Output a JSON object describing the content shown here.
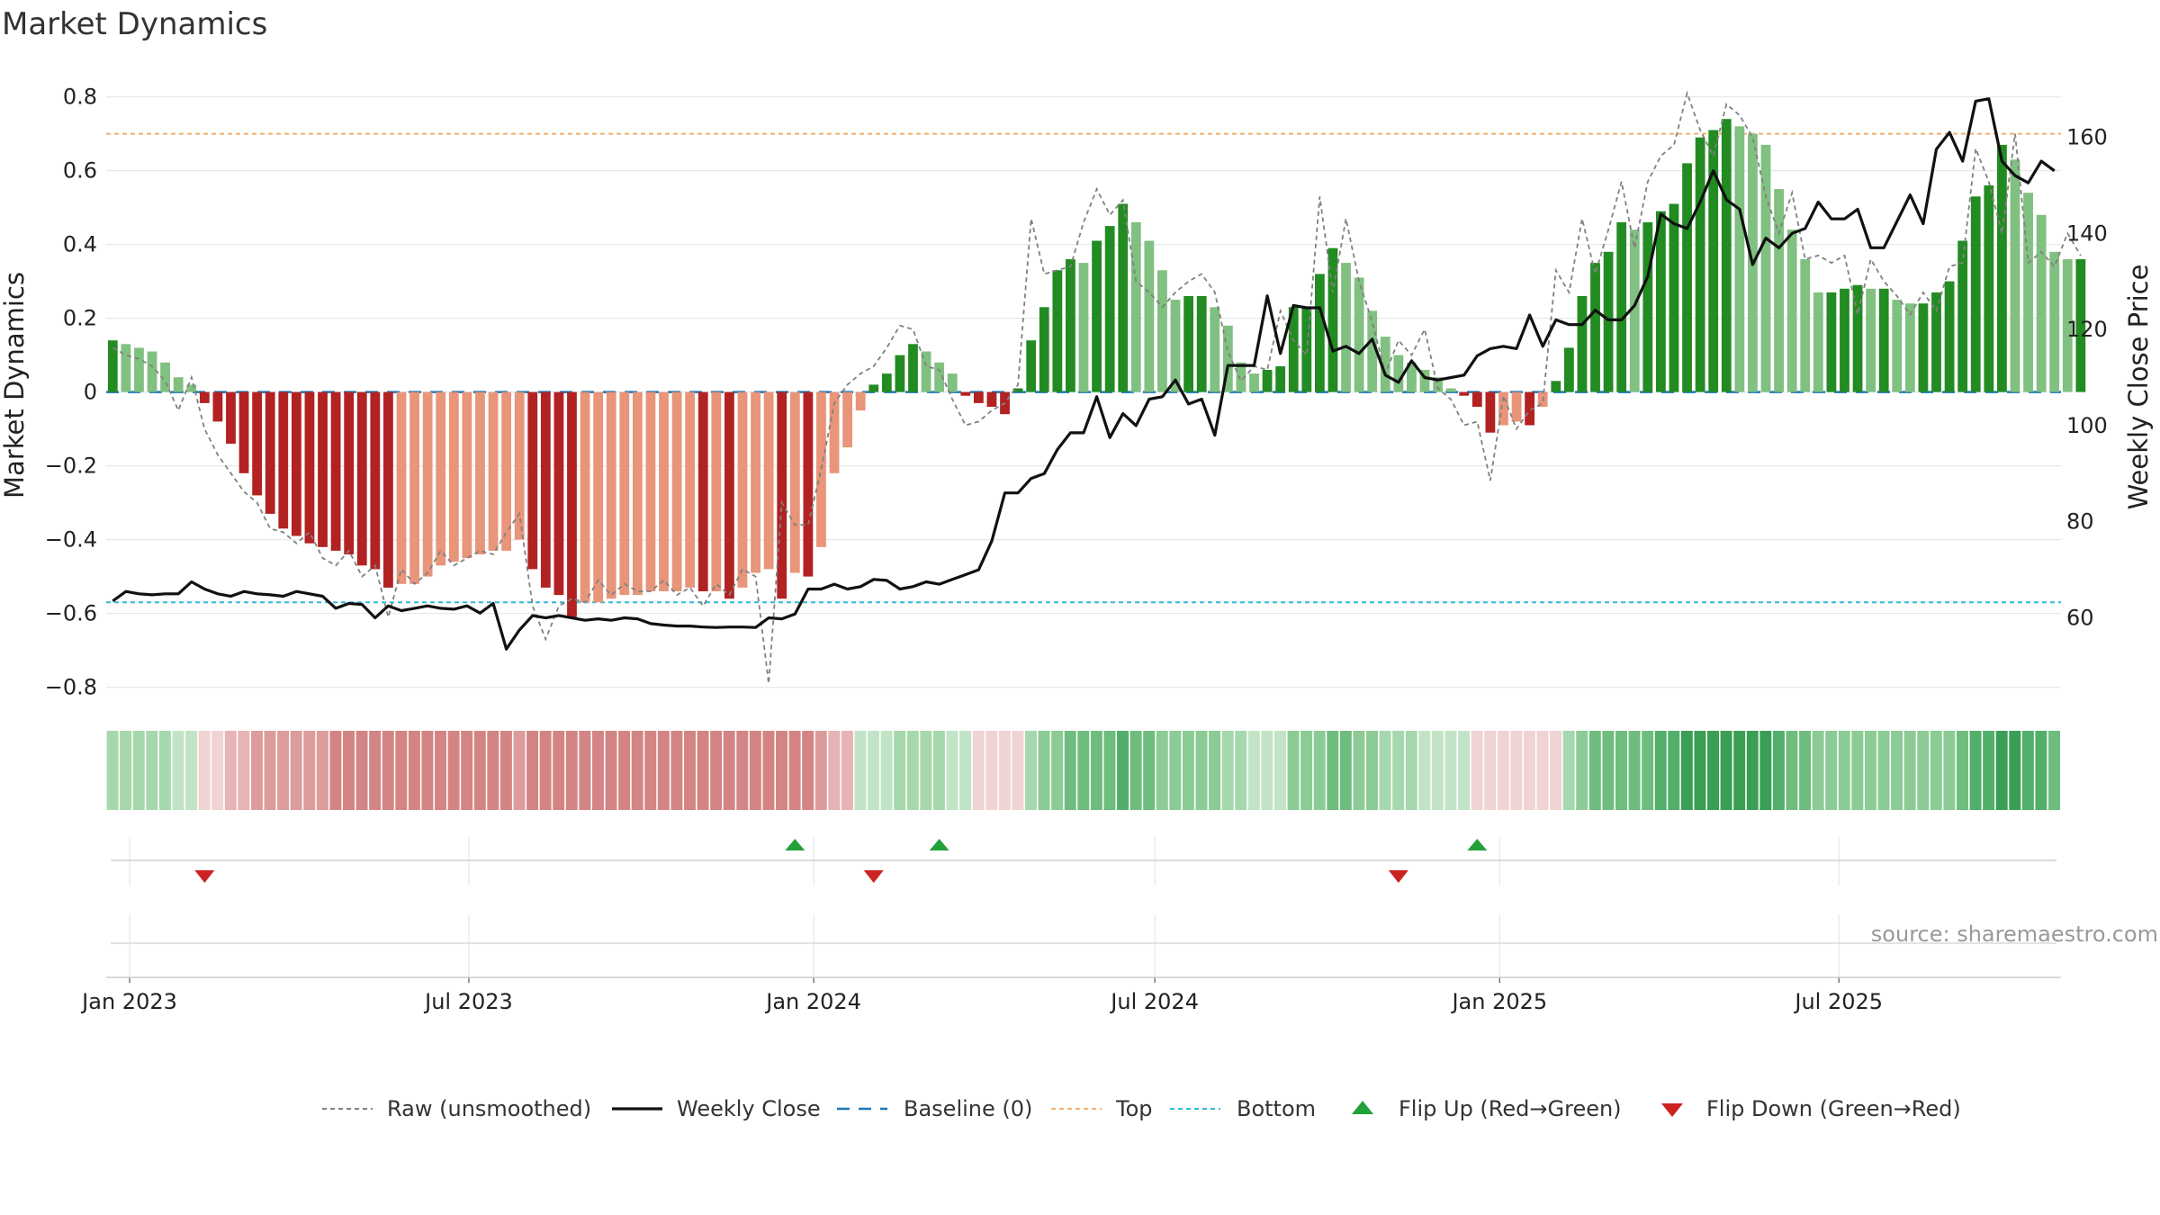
{
  "chart_data": {
    "type": "bar",
    "title": "Market Dynamics",
    "ylabel": "Market Dynamics",
    "y2label": "Weekly Close Price",
    "source": "source: sharemaestro.com",
    "ylim": [
      -0.84,
      0.86
    ],
    "yticks": [
      -0.8,
      -0.6,
      -0.4,
      -0.2,
      0,
      0.2,
      0.4,
      0.6,
      0.8
    ],
    "ytick_labels": [
      "−0.8",
      "−0.6",
      "−0.4",
      "−0.2",
      "0",
      "0.2",
      "0.4",
      "0.6",
      "0.8"
    ],
    "y2lim": [
      42.5,
      173
    ],
    "y2ticks": [
      60,
      80,
      100,
      120,
      140,
      160
    ],
    "y2tick_labels": [
      "60",
      "80",
      "100",
      "120",
      "140",
      "160"
    ],
    "top_level": 0.7,
    "bottom_level": -0.57,
    "x_start": "2022-12-23",
    "weeks": 149,
    "xticks": [
      {
        "date": "2023-01-01",
        "label": "Jan 2023"
      },
      {
        "date": "2023-07-01",
        "label": "Jul 2023"
      },
      {
        "date": "2024-01-01",
        "label": "Jan 2024"
      },
      {
        "date": "2024-07-01",
        "label": "Jul 2024"
      },
      {
        "date": "2025-01-01",
        "label": "Jan 2025"
      },
      {
        "date": "2025-07-01",
        "label": "Jul 2025"
      }
    ],
    "smoothed": [
      0.14,
      0.13,
      0.12,
      0.11,
      0.08,
      0.04,
      0.02,
      -0.03,
      -0.08,
      -0.14,
      -0.22,
      -0.28,
      -0.33,
      -0.37,
      -0.39,
      -0.41,
      -0.42,
      -0.43,
      -0.44,
      -0.47,
      -0.48,
      -0.53,
      -0.52,
      -0.52,
      -0.5,
      -0.47,
      -0.46,
      -0.45,
      -0.44,
      -0.43,
      -0.43,
      -0.4,
      -0.48,
      -0.53,
      -0.55,
      -0.61,
      -0.57,
      -0.57,
      -0.56,
      -0.55,
      -0.55,
      -0.54,
      -0.54,
      -0.54,
      -0.53,
      -0.54,
      -0.54,
      -0.56,
      -0.53,
      -0.49,
      -0.48,
      -0.56,
      -0.49,
      -0.5,
      -0.42,
      -0.22,
      -0.15,
      -0.05,
      0.02,
      0.05,
      0.1,
      0.13,
      0.11,
      0.08,
      0.05,
      -0.01,
      -0.03,
      -0.04,
      -0.06,
      0.01,
      0.14,
      0.23,
      0.33,
      0.36,
      0.35,
      0.41,
      0.45,
      0.51,
      0.46,
      0.41,
      0.33,
      0.25,
      0.26,
      0.26,
      0.23,
      0.18,
      0.08,
      0.05,
      0.06,
      0.07,
      0.23,
      0.23,
      0.32,
      0.39,
      0.35,
      0.31,
      0.22,
      0.15,
      0.1,
      0.08,
      0.06,
      0.04,
      0.01,
      -0.01,
      -0.04,
      -0.11,
      -0.09,
      -0.08,
      -0.09,
      -0.04,
      0.03,
      0.12,
      0.26,
      0.35,
      0.38,
      0.46,
      0.44,
      0.46,
      0.49,
      0.51,
      0.62,
      0.69,
      0.71,
      0.74,
      0.72,
      0.7,
      0.67,
      0.55,
      0.44,
      0.36,
      0.27,
      0.27,
      0.28,
      0.29,
      0.28,
      0.28,
      0.25,
      0.24,
      0.24,
      0.27,
      0.3,
      0.41,
      0.53,
      0.56,
      0.67,
      0.63,
      0.54,
      0.48,
      0.38,
      0.36,
      0.36
    ],
    "raw": [
      0.12,
      0.1,
      0.09,
      0.07,
      0.03,
      -0.05,
      0.04,
      -0.1,
      -0.17,
      -0.22,
      -0.27,
      -0.3,
      -0.37,
      -0.38,
      -0.41,
      -0.38,
      -0.45,
      -0.47,
      -0.43,
      -0.5,
      -0.47,
      -0.61,
      -0.48,
      -0.52,
      -0.49,
      -0.43,
      -0.47,
      -0.45,
      -0.43,
      -0.44,
      -0.38,
      -0.33,
      -0.58,
      -0.67,
      -0.58,
      -0.56,
      -0.57,
      -0.51,
      -0.55,
      -0.52,
      -0.54,
      -0.54,
      -0.51,
      -0.55,
      -0.53,
      -0.58,
      -0.52,
      -0.55,
      -0.48,
      -0.5,
      -0.79,
      -0.3,
      -0.36,
      -0.36,
      -0.21,
      -0.03,
      0.02,
      0.05,
      0.07,
      0.12,
      0.18,
      0.17,
      0.07,
      0.06,
      -0.02,
      -0.09,
      -0.08,
      -0.05,
      -0.03,
      0.02,
      0.47,
      0.32,
      0.33,
      0.34,
      0.46,
      0.55,
      0.48,
      0.52,
      0.3,
      0.27,
      0.23,
      0.27,
      0.3,
      0.32,
      0.27,
      0.11,
      0.03,
      0.07,
      0.06,
      0.22,
      0.14,
      0.1,
      0.53,
      0.27,
      0.47,
      0.3,
      0.19,
      0.05,
      0.14,
      0.1,
      0.17,
      0.01,
      -0.02,
      -0.09,
      -0.08,
      -0.24,
      -0.01,
      -0.1,
      -0.05,
      -0.03,
      0.33,
      0.27,
      0.47,
      0.32,
      0.44,
      0.57,
      0.39,
      0.57,
      0.64,
      0.67,
      0.81,
      0.71,
      0.64,
      0.78,
      0.75,
      0.69,
      0.53,
      0.43,
      0.54,
      0.36,
      0.37,
      0.35,
      0.37,
      0.21,
      0.36,
      0.3,
      0.26,
      0.21,
      0.27,
      0.22,
      0.34,
      0.35,
      0.66,
      0.57,
      0.43,
      0.7,
      0.35,
      0.38,
      0.34,
      0.43,
      0.37
    ],
    "close": [
      63.5,
      65.5,
      65.0,
      64.8,
      65.0,
      65.0,
      67.5,
      66.0,
      65.0,
      64.5,
      65.5,
      65.0,
      64.8,
      64.5,
      65.5,
      65.0,
      64.5,
      62.0,
      63.0,
      62.8,
      60.0,
      62.5,
      61.5,
      62.0,
      62.5,
      62.0,
      61.8,
      62.5,
      61.0,
      63.0,
      53.5,
      57.5,
      60.5,
      60.0,
      60.5,
      60.0,
      59.5,
      59.8,
      59.5,
      60.0,
      59.8,
      58.8,
      58.5,
      58.3,
      58.3,
      58.1,
      58.0,
      58.1,
      58.1,
      58.0,
      60.0,
      59.8,
      60.8,
      66.0,
      66.0,
      67.0,
      66.0,
      66.5,
      68.0,
      67.8,
      66.0,
      66.5,
      67.5,
      67.0,
      68.0,
      69.0,
      70.0,
      76.0,
      86.0,
      86.0,
      89.0,
      90.0,
      95.0,
      98.5,
      98.5,
      106.0,
      97.5,
      102.5,
      100.0,
      105.5,
      106.0,
      109.5,
      104.5,
      105.5,
      98.0,
      112.5,
      112.5,
      112.5,
      127.0,
      115.0,
      125.0,
      124.5,
      124.5,
      115.5,
      116.5,
      115.0,
      118.0,
      110.5,
      109.0,
      113.5,
      110.0,
      109.5,
      110.0,
      110.5,
      114.5,
      116.0,
      116.5,
      116.0,
      123.0,
      116.5,
      122.0,
      121.0,
      121.0,
      124.0,
      122.0,
      122.0,
      125.0,
      131.0,
      144.0,
      142.0,
      141.0,
      146.5,
      153.0,
      147.0,
      145.0,
      133.5,
      139.0,
      137.0,
      140.0,
      141.0,
      146.5,
      143.0,
      143.0,
      145.0,
      137.0,
      137.0,
      142.5,
      148.0,
      142.0,
      157.5,
      161.0,
      155.0,
      167.5,
      168.0,
      155.0,
      152.0,
      150.5,
      155.0,
      153.0
    ],
    "regime_labels": [
      "L",
      "L",
      "L",
      "L",
      "L",
      "L",
      "L",
      "R",
      "R",
      "R",
      "R",
      "R",
      "R",
      "R",
      "R",
      "R",
      "R",
      "R",
      "R",
      "R",
      "R",
      "R",
      "R",
      "R",
      "R",
      "R",
      "R",
      "R",
      "R",
      "R",
      "R",
      "R",
      "R",
      "R",
      "R",
      "R",
      "R",
      "R",
      "R",
      "R",
      "R",
      "R",
      "R",
      "R",
      "R",
      "R",
      "R",
      "R",
      "R",
      "R",
      "R",
      "R",
      "R",
      "R",
      "R",
      "R",
      "R",
      "L",
      "L",
      "L",
      "L",
      "L",
      "L",
      "L",
      "L",
      "L",
      "R",
      "R",
      "R",
      "R",
      "L",
      "L",
      "L",
      "L",
      "L",
      "L",
      "L",
      "L",
      "L",
      "L",
      "L",
      "L",
      "L",
      "L",
      "L",
      "L",
      "L",
      "L",
      "L",
      "L",
      "L",
      "L",
      "L",
      "L",
      "L",
      "L",
      "L",
      "L",
      "L",
      "L",
      "L",
      "L",
      "L",
      "L",
      "R",
      "R",
      "R",
      "R",
      "R",
      "R",
      "R",
      "L",
      "L",
      "L",
      "L",
      "L",
      "L",
      "L",
      "L",
      "L",
      "L",
      "L",
      "L",
      "L",
      "L",
      "L",
      "L",
      "L",
      "L",
      "L",
      "L",
      "L",
      "L",
      "L",
      "L",
      "L",
      "L",
      "L",
      "L",
      "L",
      "L",
      "L",
      "L",
      "L",
      "L",
      "L",
      "L",
      "L",
      "L"
    ],
    "flip_up": [
      "2023-12-22",
      "2024-03-08",
      "2024-12-20"
    ],
    "flip_down": [
      "2023-02-10",
      "2024-02-02",
      "2024-11-08"
    ],
    "legend": {
      "raw": "Raw (unsmoothed)",
      "close": "Weekly Close",
      "baseline": "Baseline (0)",
      "top": "Top",
      "bottom": "Bottom",
      "flip_up": "Flip Up (Red→Green)",
      "flip_down": "Flip Down (Green→Red)"
    },
    "colors": {
      "green_dark": "#228b22",
      "green_light": "#80c080",
      "red_dark": "#b22222",
      "red_light": "#e8957a",
      "raw": "#808080",
      "close": "#111111",
      "baseline": "#1f77b4",
      "top": "#f0b070",
      "bottom": "#30b8d8",
      "marker_up": "#22a03a",
      "marker_down": "#cc2222",
      "grid": "#e8e8e8",
      "source": "#999999"
    }
  }
}
